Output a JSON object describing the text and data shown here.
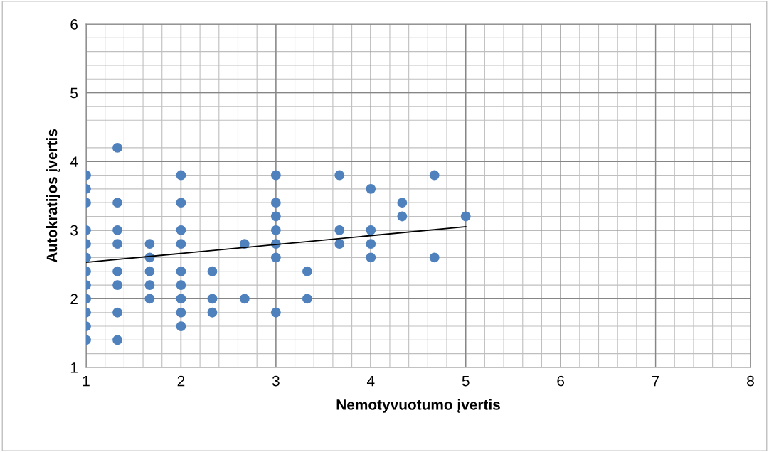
{
  "chart_data": {
    "type": "scatter",
    "xlabel": "Nemotyvuotumo įvertis",
    "ylabel": "Autokratijos įvertis",
    "xlim": [
      1,
      8
    ],
    "xticks": [
      1,
      2,
      3,
      4,
      5,
      6,
      7,
      8
    ],
    "ylim": [
      1,
      6
    ],
    "yticks": [
      1,
      2,
      3,
      4,
      5,
      6
    ],
    "grid": true,
    "legend": false,
    "series": [
      {
        "marker": "circle",
        "color": "#4f81bd",
        "x": [
          1,
          1,
          1,
          1,
          1,
          1,
          1,
          1,
          1,
          1,
          1,
          1,
          1.33,
          1.33,
          1.33,
          1.33,
          1.33,
          1.33,
          1.33,
          1.33,
          1.67,
          1.67,
          1.67,
          1.67,
          1.67,
          2,
          2,
          2,
          2,
          2,
          2,
          2,
          2,
          2,
          2.33,
          2.33,
          2.33,
          2.67,
          2.67,
          3,
          3,
          3,
          3,
          3,
          3,
          3,
          3.33,
          3.33,
          3.67,
          3.67,
          3.67,
          4,
          4,
          4,
          4,
          4.33,
          4.33,
          4.67,
          4.67,
          5
        ],
        "values": [
          3.8,
          3.6,
          3.4,
          3.0,
          2.8,
          2.6,
          2.4,
          2.2,
          2.0,
          1.8,
          1.6,
          1.4,
          4.2,
          3.4,
          3.0,
          2.8,
          2.4,
          2.2,
          1.8,
          1.4,
          2.8,
          2.6,
          2.4,
          2.2,
          2.0,
          3.8,
          3.4,
          3.0,
          2.8,
          2.4,
          2.2,
          2.0,
          1.8,
          1.6,
          2.4,
          2.0,
          1.8,
          2.8,
          2.0,
          3.8,
          3.4,
          3.2,
          3.0,
          2.8,
          2.6,
          1.8,
          2.4,
          2.0,
          3.8,
          3.0,
          2.8,
          3.6,
          3.0,
          2.8,
          2.6,
          3.4,
          3.2,
          3.8,
          2.6,
          3.2
        ]
      },
      {
        "type": "line",
        "marker": "none",
        "color": "#000000",
        "x": [
          1,
          5
        ],
        "values": [
          2.53,
          3.05
        ]
      }
    ]
  }
}
